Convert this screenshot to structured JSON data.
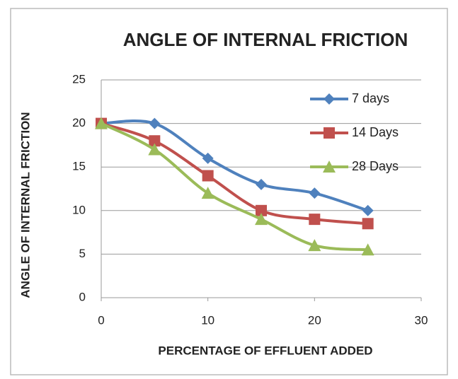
{
  "chart_data": {
    "type": "line",
    "title": "ANGLE OF INTERNAL FRICTION",
    "x_label": "PERCENTAGE OF EFFLUENT ADDED",
    "y_label": "ANGLE OF INTERNAL FRICTION",
    "x": [
      0,
      5,
      10,
      15,
      20,
      25
    ],
    "series": [
      {
        "name": "7 days",
        "color": "#4f81bd",
        "marker": "diamond",
        "values": [
          20,
          20,
          16,
          13,
          12,
          10
        ]
      },
      {
        "name": "14 Days",
        "color": "#c0504d",
        "marker": "square",
        "values": [
          20,
          18,
          14,
          10,
          9,
          8.5
        ]
      },
      {
        "name": "28 Days",
        "color": "#9bbb59",
        "marker": "triangle",
        "values": [
          20,
          17,
          12,
          9,
          6,
          5.5
        ]
      }
    ],
    "xlim": [
      0,
      30
    ],
    "xticks": [
      0,
      10,
      20,
      30
    ],
    "ylim": [
      0,
      25
    ],
    "yticks": [
      0,
      5,
      10,
      15,
      20,
      25
    ],
    "grid": true,
    "smooth": true,
    "legend": "upper right"
  }
}
